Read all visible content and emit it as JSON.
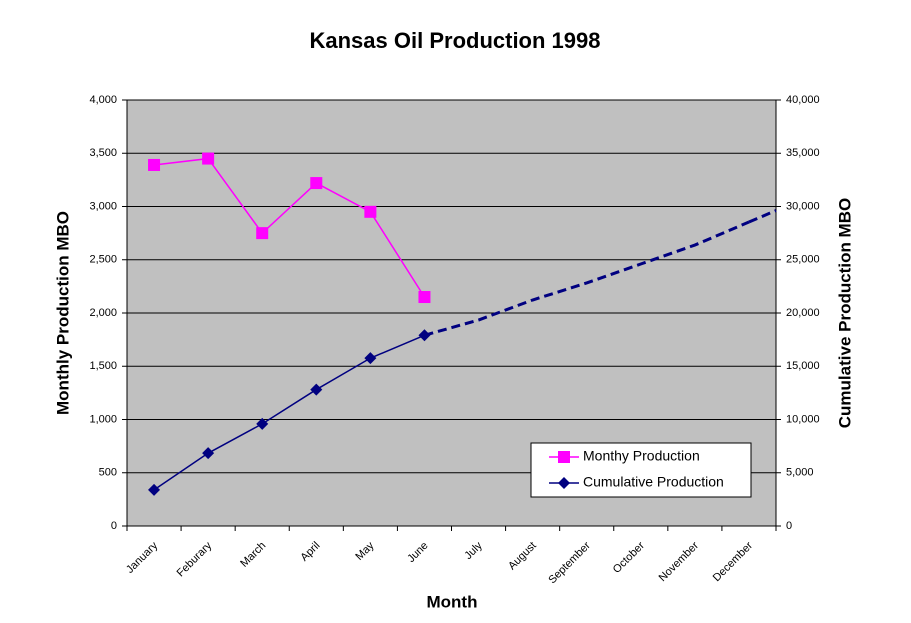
{
  "chart_data": {
    "type": "line",
    "title": "Kansas Oil Production 1998",
    "x_label": "Month",
    "y_label": "Monthly Production MBO",
    "y2_label": "Cumulative Production MBO",
    "categories": [
      "January",
      "Feburary",
      "March",
      "April",
      "May",
      "June",
      "July",
      "August",
      "September",
      "October",
      "November",
      "December"
    ],
    "ylim": [
      0,
      4000
    ],
    "yticks": [
      0,
      500,
      {
        "value": 1000,
        "label": "1,000"
      },
      {
        "value": 1500,
        "label": "1,500"
      },
      {
        "value": 2000,
        "label": "2,000"
      },
      {
        "value": 2500,
        "label": "2,500"
      },
      {
        "value": 3000,
        "label": "3,000"
      },
      {
        "value": 3500,
        "label": "3,500"
      },
      {
        "value": 4000,
        "label": "4,000"
      }
    ],
    "y2lim": [
      0,
      40000
    ],
    "y2ticks": [
      0,
      {
        "value": 5000,
        "label": "5,000"
      },
      {
        "value": 10000,
        "label": "10,000"
      },
      {
        "value": 15000,
        "label": "15,000"
      },
      {
        "value": 20000,
        "label": "20,000"
      },
      {
        "value": 25000,
        "label": "25,000"
      },
      {
        "value": 30000,
        "label": "30,000"
      },
      {
        "value": 35000,
        "label": "35,000"
      },
      {
        "value": 40000,
        "label": "40,000"
      }
    ],
    "grid": true,
    "legend": "lower right",
    "series": [
      {
        "name": "Monthy Production",
        "color": "#ff00ff",
        "marker": "square",
        "values": [
          3390,
          3450,
          2750,
          3220,
          2950,
          2150,
          null,
          null,
          null,
          null,
          null,
          null
        ]
      },
      {
        "name": "Cumulative Production",
        "color": "#000080",
        "marker": "diamond",
        "axis": "y2",
        "values": [
          3390,
          6840,
          9590,
          12810,
          15760,
          17910,
          null,
          null,
          null,
          null,
          null,
          null
        ]
      },
      {
        "color": "#000080",
        "dashed": true,
        "axis": "y2",
        "values": [
          null,
          null,
          null,
          null,
          null,
          17910,
          19340,
          21220,
          22820,
          24600,
          26380,
          28540
        ]
      }
    ]
  }
}
